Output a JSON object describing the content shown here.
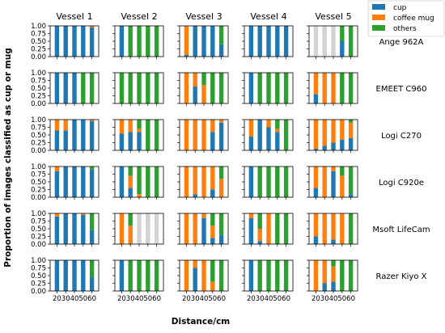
{
  "chart_data": {
    "type": "bar",
    "stacked": true,
    "grid_layout": "6 rows x 5 columns of small multiples",
    "columns": [
      "Vessel 1",
      "Vessel 2",
      "Vessel 3",
      "Vessel 4",
      "Vessel 5"
    ],
    "rows": [
      "Ange 962A",
      "EMEET C960",
      "Logi C270",
      "Logi C920e",
      "Msoft LifeCam",
      "Razer Kiyo X"
    ],
    "x": [
      20,
      30,
      40,
      50,
      60
    ],
    "xticks": [
      "20",
      "30",
      "40",
      "50",
      "60"
    ],
    "ylim": [
      0,
      1
    ],
    "yticks": [
      "0.00",
      "0.25",
      "0.50",
      "0.75",
      "1.00"
    ],
    "xlabel": "Distance/cm",
    "ylabel": "Proportion of images classified as cup or mug",
    "legend": {
      "position": "top-right",
      "entries": [
        {
          "name": "cup",
          "color": "#1f77b4"
        },
        {
          "name": "coffee mug",
          "color": "#ff7f0e"
        },
        {
          "name": "others",
          "color": "#2ca02c"
        }
      ]
    },
    "colors": {
      "cup": "#1f77b4",
      "coffee_mug": "#ff7f0e",
      "others": "#2ca02c",
      "missing": "#d3d3d3"
    },
    "panels": [
      [
        {
          "cup": [
            1,
            1,
            1,
            1,
            0.95
          ],
          "coffee_mug": [
            0,
            0,
            0,
            0,
            0.05
          ]
        },
        {
          "cup": [
            1,
            0,
            0,
            0,
            0
          ],
          "coffee_mug": [
            0,
            0,
            0,
            0,
            0
          ]
        },
        {
          "cup": [
            0.05,
            1,
            1,
            1,
            0.4
          ],
          "coffee_mug": [
            0.95,
            0,
            0,
            0,
            0
          ]
        },
        {
          "cup": [
            1,
            1,
            1,
            1,
            1
          ],
          "coffee_mug": [
            0,
            0,
            0,
            0,
            0
          ]
        },
        {
          "cup": [
            null,
            null,
            null,
            0.5,
            0
          ],
          "coffee_mug": [
            null,
            null,
            null,
            0,
            0
          ],
          "missing": [
            0,
            1,
            2
          ]
        }
      ],
      [
        {
          "cup": [
            1,
            1,
            1,
            0,
            0
          ],
          "coffee_mug": [
            0,
            0,
            0,
            0,
            0
          ]
        },
        {
          "cup": [
            0,
            0,
            0,
            0,
            0
          ],
          "coffee_mug": [
            0,
            0,
            0,
            0,
            0
          ]
        },
        {
          "cup": [
            0,
            0.55,
            0,
            0,
            0
          ],
          "coffee_mug": [
            1,
            0.45,
            0.6,
            0,
            0
          ]
        },
        {
          "cup": [
            1,
            0,
            0,
            0,
            0
          ],
          "coffee_mug": [
            0,
            0,
            0,
            0,
            0
          ]
        },
        {
          "cup": [
            0.3,
            0,
            0,
            0,
            0
          ],
          "coffee_mug": [
            0.7,
            1,
            1,
            0,
            0
          ]
        }
      ],
      [
        {
          "cup": [
            0.65,
            0.65,
            1,
            1,
            0.95
          ],
          "coffee_mug": [
            0.35,
            0.35,
            0,
            0,
            0.05
          ]
        },
        {
          "cup": [
            0.55,
            0.6,
            0.6,
            0,
            0
          ],
          "coffee_mug": [
            0.45,
            0.4,
            0.1,
            0,
            0
          ]
        },
        {
          "cup": [
            0,
            0,
            0,
            0.6,
            0.9
          ],
          "coffee_mug": [
            1,
            1,
            1,
            0.4,
            0.1
          ]
        },
        {
          "cup": [
            0.45,
            1,
            0.75,
            0.6,
            0
          ],
          "coffee_mug": [
            0.55,
            0,
            0.25,
            0.1,
            0
          ]
        },
        {
          "cup": [
            0.05,
            0.15,
            0.25,
            0.35,
            0.4
          ],
          "coffee_mug": [
            0.95,
            0.85,
            0.75,
            0.65,
            0.5
          ]
        }
      ],
      [
        {
          "cup": [
            0.85,
            1,
            1,
            1,
            0.9
          ],
          "coffee_mug": [
            0.15,
            0,
            0,
            0,
            0
          ]
        },
        {
          "cup": [
            1,
            0.3,
            0,
            0,
            0
          ],
          "coffee_mug": [
            0,
            0.4,
            0.1,
            0,
            0
          ]
        },
        {
          "cup": [
            0,
            0.1,
            0,
            0.25,
            0
          ],
          "coffee_mug": [
            1,
            0.9,
            1,
            0.75,
            0.6
          ]
        },
        {
          "cup": [
            1,
            0,
            0,
            0,
            0
          ],
          "coffee_mug": [
            0,
            0,
            0,
            0,
            0
          ]
        },
        {
          "cup": [
            0.3,
            0,
            0.85,
            0,
            0.1
          ],
          "coffee_mug": [
            0.7,
            1,
            0.15,
            0.7,
            0
          ]
        }
      ],
      [
        {
          "cup": [
            0.9,
            1,
            1,
            0.95,
            0.45
          ],
          "coffee_mug": [
            0.1,
            0,
            0,
            0.05,
            0
          ]
        },
        {
          "cup": [
            0,
            0,
            null,
            null,
            null
          ],
          "coffee_mug": [
            1,
            0.6,
            null,
            null,
            null
          ],
          "missing": [
            2,
            3,
            4
          ]
        },
        {
          "cup": [
            0,
            0,
            0.85,
            0.2,
            0.3
          ],
          "coffee_mug": [
            1,
            1,
            0.15,
            0.4,
            0
          ]
        },
        {
          "cup": [
            0.85,
            0.1,
            0,
            0,
            0
          ],
          "coffee_mug": [
            0.15,
            0.4,
            1,
            0,
            0
          ]
        },
        {
          "cup": [
            0.25,
            0,
            0.15,
            0,
            0
          ],
          "coffee_mug": [
            0.75,
            1,
            0.85,
            1,
            0
          ]
        }
      ],
      [
        {
          "cup": [
            1,
            1,
            1,
            1,
            0.45
          ],
          "coffee_mug": [
            0,
            0,
            0,
            0,
            0
          ]
        },
        {
          "cup": [
            1,
            0,
            0,
            0,
            0
          ],
          "coffee_mug": [
            0,
            0,
            0,
            0,
            0
          ]
        },
        {
          "cup": [
            0,
            0.75,
            0,
            0,
            0
          ],
          "coffee_mug": [
            1,
            0.25,
            1,
            0.3,
            0
          ]
        },
        {
          "cup": [
            1,
            0,
            0,
            0,
            0
          ],
          "coffee_mug": [
            0,
            0,
            0,
            0,
            0
          ]
        },
        {
          "cup": [
            0,
            0.25,
            0.3,
            0,
            0
          ],
          "coffee_mug": [
            1,
            0.75,
            0.5,
            0,
            0
          ]
        }
      ]
    ]
  }
}
